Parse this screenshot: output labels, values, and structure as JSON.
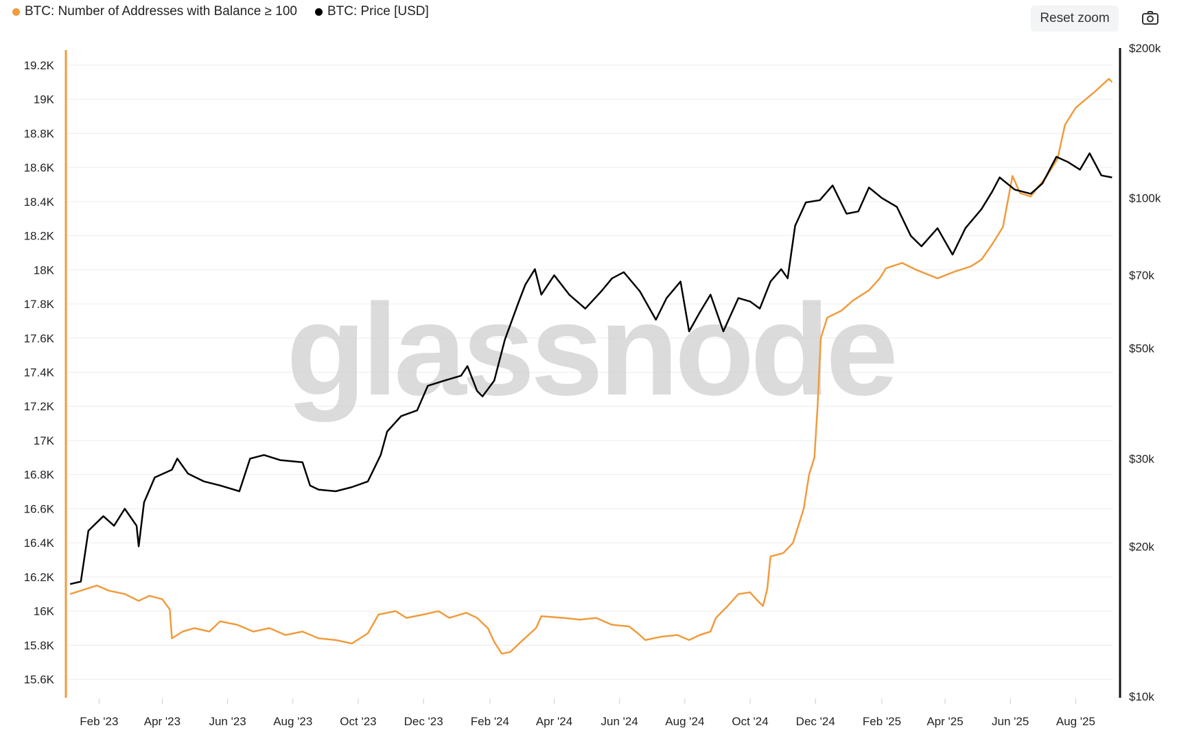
{
  "legend": [
    {
      "label": "BTC: Number of Addresses with Balance ≥ 100",
      "color": "#f09b3c"
    },
    {
      "label": "BTC: Price [USD]",
      "color": "#000000"
    }
  ],
  "toolbar": {
    "reset_zoom": "Reset zoom",
    "camera_icon": "camera-icon"
  },
  "watermark": "glassnode",
  "chart_data": {
    "type": "line",
    "x_range": [
      "2023-01-01",
      "2025-09-05"
    ],
    "x_ticks": [
      {
        "date": "2023-02-01",
        "label": "Feb '23"
      },
      {
        "date": "2023-04-01",
        "label": "Apr '23"
      },
      {
        "date": "2023-06-01",
        "label": "Jun '23"
      },
      {
        "date": "2023-08-01",
        "label": "Aug '23"
      },
      {
        "date": "2023-10-01",
        "label": "Oct '23"
      },
      {
        "date": "2023-12-01",
        "label": "Dec '23"
      },
      {
        "date": "2024-02-01",
        "label": "Feb '24"
      },
      {
        "date": "2024-04-01",
        "label": "Apr '24"
      },
      {
        "date": "2024-06-01",
        "label": "Jun '24"
      },
      {
        "date": "2024-08-01",
        "label": "Aug '24"
      },
      {
        "date": "2024-10-01",
        "label": "Oct '24"
      },
      {
        "date": "2024-12-01",
        "label": "Dec '24"
      },
      {
        "date": "2025-02-01",
        "label": "Feb '25"
      },
      {
        "date": "2025-04-01",
        "label": "Apr '25"
      },
      {
        "date": "2025-06-01",
        "label": "Jun '25"
      },
      {
        "date": "2025-08-01",
        "label": "Aug '25"
      }
    ],
    "y_left": {
      "range": [
        15500,
        19300
      ],
      "ticks": [
        {
          "value": 15600,
          "label": "15.6K"
        },
        {
          "value": 15800,
          "label": "15.8K"
        },
        {
          "value": 16000,
          "label": "16K"
        },
        {
          "value": 16200,
          "label": "16.2K"
        },
        {
          "value": 16400,
          "label": "16.4K"
        },
        {
          "value": 16600,
          "label": "16.6K"
        },
        {
          "value": 16800,
          "label": "16.8K"
        },
        {
          "value": 17000,
          "label": "17K"
        },
        {
          "value": 17200,
          "label": "17.2K"
        },
        {
          "value": 17400,
          "label": "17.4K"
        },
        {
          "value": 17600,
          "label": "17.6K"
        },
        {
          "value": 17800,
          "label": "17.8K"
        },
        {
          "value": 18000,
          "label": "18K"
        },
        {
          "value": 18200,
          "label": "18.2K"
        },
        {
          "value": 18400,
          "label": "18.4K"
        },
        {
          "value": 18600,
          "label": "18.6K"
        },
        {
          "value": 18800,
          "label": "18.8K"
        },
        {
          "value": 19000,
          "label": "19K"
        },
        {
          "value": 19200,
          "label": "19.2K"
        }
      ]
    },
    "y_right": {
      "scale": "log",
      "range": [
        10000,
        200000
      ],
      "ticks": [
        {
          "value": 10000,
          "label": "$10k"
        },
        {
          "value": 20000,
          "label": "$20k"
        },
        {
          "value": 30000,
          "label": "$30k"
        },
        {
          "value": 50000,
          "label": "$50k"
        },
        {
          "value": 70000,
          "label": "$70k"
        },
        {
          "value": 100000,
          "label": "$100k"
        },
        {
          "value": 200000,
          "label": "$200k"
        }
      ]
    },
    "series": [
      {
        "name": "BTC: Number of Addresses with Balance ≥ 100",
        "axis": "left",
        "color": "#f09b3c",
        "points": [
          [
            "2023-01-05",
            16100
          ],
          [
            "2023-01-15",
            16120
          ],
          [
            "2023-01-30",
            16150
          ],
          [
            "2023-02-10",
            16120
          ],
          [
            "2023-02-25",
            16100
          ],
          [
            "2023-03-10",
            16060
          ],
          [
            "2023-03-20",
            16090
          ],
          [
            "2023-04-01",
            16070
          ],
          [
            "2023-04-08",
            16010
          ],
          [
            "2023-04-10",
            15840
          ],
          [
            "2023-04-20",
            15880
          ],
          [
            "2023-05-01",
            15900
          ],
          [
            "2023-05-15",
            15880
          ],
          [
            "2023-05-25",
            15940
          ],
          [
            "2023-06-10",
            15920
          ],
          [
            "2023-06-25",
            15880
          ],
          [
            "2023-07-10",
            15900
          ],
          [
            "2023-07-25",
            15860
          ],
          [
            "2023-08-10",
            15880
          ],
          [
            "2023-08-25",
            15840
          ],
          [
            "2023-09-10",
            15830
          ],
          [
            "2023-09-25",
            15810
          ],
          [
            "2023-10-05",
            15850
          ],
          [
            "2023-10-10",
            15870
          ],
          [
            "2023-10-20",
            15980
          ],
          [
            "2023-11-05",
            16000
          ],
          [
            "2023-11-15",
            15960
          ],
          [
            "2023-12-01",
            15980
          ],
          [
            "2023-12-15",
            16000
          ],
          [
            "2023-12-25",
            15960
          ],
          [
            "2024-01-10",
            15990
          ],
          [
            "2024-01-20",
            15960
          ],
          [
            "2024-01-30",
            15900
          ],
          [
            "2024-02-05",
            15820
          ],
          [
            "2024-02-12",
            15750
          ],
          [
            "2024-02-20",
            15760
          ],
          [
            "2024-03-01",
            15820
          ],
          [
            "2024-03-15",
            15900
          ],
          [
            "2024-03-20",
            15970
          ],
          [
            "2024-04-10",
            15960
          ],
          [
            "2024-04-25",
            15950
          ],
          [
            "2024-05-10",
            15960
          ],
          [
            "2024-05-25",
            15920
          ],
          [
            "2024-06-10",
            15910
          ],
          [
            "2024-06-20",
            15860
          ],
          [
            "2024-06-25",
            15830
          ],
          [
            "2024-07-10",
            15850
          ],
          [
            "2024-07-25",
            15860
          ],
          [
            "2024-08-05",
            15830
          ],
          [
            "2024-08-15",
            15860
          ],
          [
            "2024-08-25",
            15880
          ],
          [
            "2024-08-30",
            15960
          ],
          [
            "2024-09-10",
            16030
          ],
          [
            "2024-09-20",
            16100
          ],
          [
            "2024-10-01",
            16110
          ],
          [
            "2024-10-08",
            16060
          ],
          [
            "2024-10-13",
            16030
          ],
          [
            "2024-10-17",
            16130
          ],
          [
            "2024-10-20",
            16320
          ],
          [
            "2024-11-01",
            16340
          ],
          [
            "2024-11-10",
            16400
          ],
          [
            "2024-11-20",
            16600
          ],
          [
            "2024-11-25",
            16800
          ],
          [
            "2024-11-30",
            16900
          ],
          [
            "2024-12-03",
            17200
          ],
          [
            "2024-12-06",
            17600
          ],
          [
            "2024-12-12",
            17720
          ],
          [
            "2024-12-25",
            17760
          ],
          [
            "2025-01-05",
            17820
          ],
          [
            "2025-01-20",
            17880
          ],
          [
            "2025-01-30",
            17950
          ],
          [
            "2025-02-05",
            18010
          ],
          [
            "2025-02-20",
            18040
          ],
          [
            "2025-03-05",
            18000
          ],
          [
            "2025-03-25",
            17950
          ],
          [
            "2025-04-10",
            17990
          ],
          [
            "2025-04-25",
            18020
          ],
          [
            "2025-05-05",
            18060
          ],
          [
            "2025-05-15",
            18150
          ],
          [
            "2025-05-25",
            18250
          ],
          [
            "2025-06-03",
            18550
          ],
          [
            "2025-06-10",
            18450
          ],
          [
            "2025-06-20",
            18430
          ],
          [
            "2025-07-05",
            18550
          ],
          [
            "2025-07-15",
            18650
          ],
          [
            "2025-07-22",
            18850
          ],
          [
            "2025-08-01",
            18950
          ],
          [
            "2025-08-20",
            19050
          ],
          [
            "2025-09-01",
            19120
          ],
          [
            "2025-09-04",
            19100
          ]
        ]
      },
      {
        "name": "BTC: Price [USD]",
        "axis": "right",
        "color": "#000000",
        "points": [
          [
            "2023-01-05",
            16800
          ],
          [
            "2023-01-15",
            17000
          ],
          [
            "2023-01-22",
            21500
          ],
          [
            "2023-02-05",
            23000
          ],
          [
            "2023-02-15",
            22000
          ],
          [
            "2023-02-25",
            23800
          ],
          [
            "2023-03-08",
            22000
          ],
          [
            "2023-03-10",
            20000
          ],
          [
            "2023-03-15",
            24500
          ],
          [
            "2023-03-25",
            27500
          ],
          [
            "2023-04-10",
            28500
          ],
          [
            "2023-04-15",
            30000
          ],
          [
            "2023-04-25",
            28000
          ],
          [
            "2023-05-10",
            27000
          ],
          [
            "2023-05-25",
            26500
          ],
          [
            "2023-06-12",
            25800
          ],
          [
            "2023-06-22",
            30000
          ],
          [
            "2023-07-05",
            30500
          ],
          [
            "2023-07-20",
            29800
          ],
          [
            "2023-08-10",
            29500
          ],
          [
            "2023-08-17",
            26500
          ],
          [
            "2023-08-25",
            26000
          ],
          [
            "2023-09-10",
            25800
          ],
          [
            "2023-09-25",
            26300
          ],
          [
            "2023-10-10",
            27000
          ],
          [
            "2023-10-22",
            30500
          ],
          [
            "2023-10-28",
            34000
          ],
          [
            "2023-11-10",
            36500
          ],
          [
            "2023-11-25",
            37500
          ],
          [
            "2023-12-05",
            42000
          ],
          [
            "2023-12-20",
            43000
          ],
          [
            "2024-01-05",
            44000
          ],
          [
            "2024-01-11",
            46000
          ],
          [
            "2024-01-20",
            41000
          ],
          [
            "2024-01-25",
            40000
          ],
          [
            "2024-02-05",
            43000
          ],
          [
            "2024-02-15",
            52000
          ],
          [
            "2024-02-28",
            62000
          ],
          [
            "2024-03-05",
            67000
          ],
          [
            "2024-03-14",
            72000
          ],
          [
            "2024-03-20",
            64000
          ],
          [
            "2024-04-01",
            70000
          ],
          [
            "2024-04-15",
            64000
          ],
          [
            "2024-04-30",
            60000
          ],
          [
            "2024-05-15",
            65000
          ],
          [
            "2024-05-25",
            69000
          ],
          [
            "2024-06-05",
            71000
          ],
          [
            "2024-06-20",
            65000
          ],
          [
            "2024-07-05",
            57000
          ],
          [
            "2024-07-15",
            63000
          ],
          [
            "2024-07-28",
            68000
          ],
          [
            "2024-08-05",
            54000
          ],
          [
            "2024-08-15",
            59000
          ],
          [
            "2024-08-25",
            64000
          ],
          [
            "2024-09-06",
            54000
          ],
          [
            "2024-09-20",
            63000
          ],
          [
            "2024-10-01",
            62000
          ],
          [
            "2024-10-10",
            60000
          ],
          [
            "2024-10-20",
            68000
          ],
          [
            "2024-10-30",
            72000
          ],
          [
            "2024-11-05",
            69000
          ],
          [
            "2024-11-12",
            88000
          ],
          [
            "2024-11-22",
            98000
          ],
          [
            "2024-12-05",
            99000
          ],
          [
            "2024-12-17",
            106000
          ],
          [
            "2024-12-30",
            93000
          ],
          [
            "2025-01-10",
            94000
          ],
          [
            "2025-01-20",
            105000
          ],
          [
            "2025-02-01",
            100000
          ],
          [
            "2025-02-15",
            96000
          ],
          [
            "2025-02-28",
            84000
          ],
          [
            "2025-03-10",
            80000
          ],
          [
            "2025-03-25",
            87000
          ],
          [
            "2025-04-08",
            77000
          ],
          [
            "2025-04-20",
            87000
          ],
          [
            "2025-05-05",
            95000
          ],
          [
            "2025-05-15",
            103000
          ],
          [
            "2025-05-22",
            110000
          ],
          [
            "2025-06-05",
            104000
          ],
          [
            "2025-06-20",
            102000
          ],
          [
            "2025-07-01",
            107000
          ],
          [
            "2025-07-14",
            121000
          ],
          [
            "2025-07-25",
            118000
          ],
          [
            "2025-08-05",
            114000
          ],
          [
            "2025-08-14",
            123000
          ],
          [
            "2025-08-25",
            111000
          ],
          [
            "2025-09-04",
            110000
          ]
        ]
      }
    ]
  }
}
